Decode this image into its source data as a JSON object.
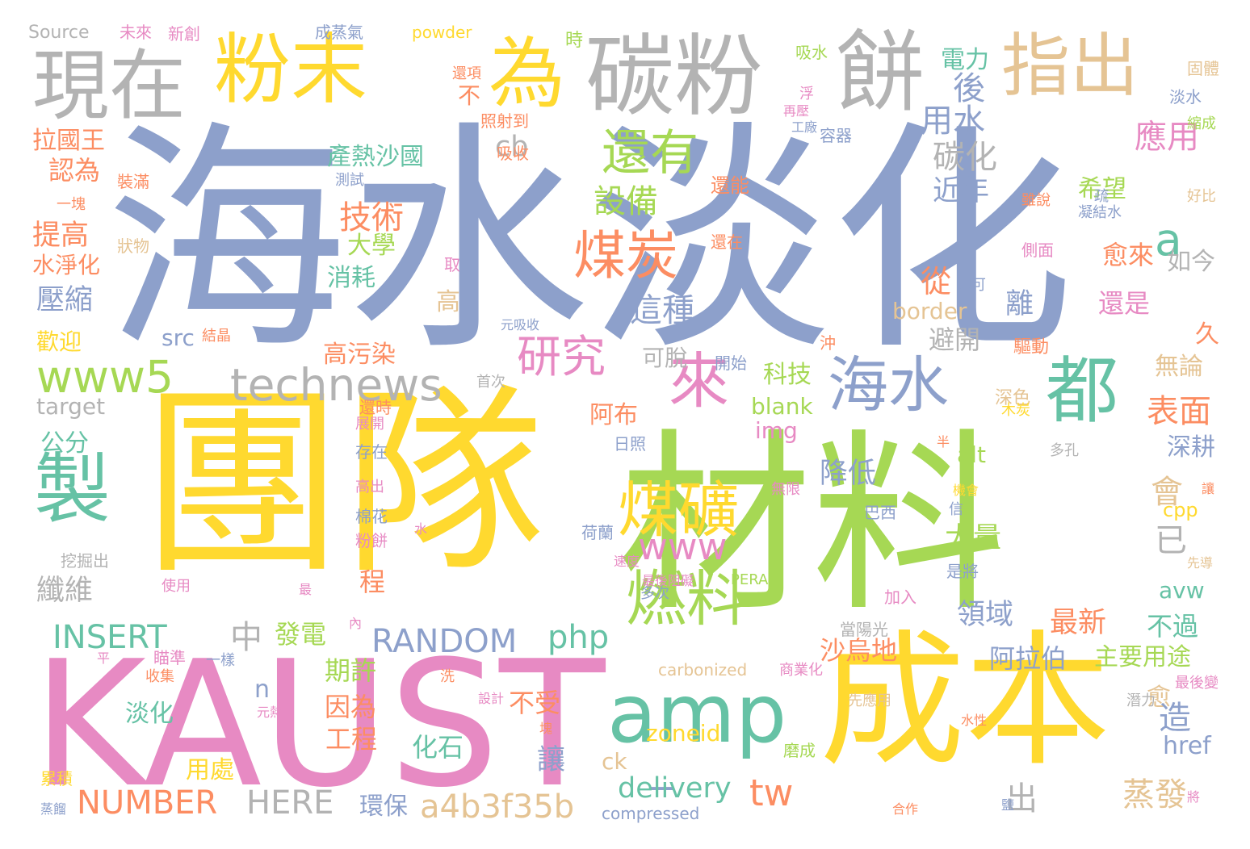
{
  "palette": {
    "periwinkle": "#8da0cb",
    "yellow": "#ffd92f",
    "green": "#a6d854",
    "pink": "#e78ac3",
    "orange": "#fc8d62",
    "teal": "#66c2a5",
    "grey": "#b3b3b3",
    "tan": "#e5c494"
  },
  "words": [
    {
      "text": "海水淡化",
      "color": "#8da0cb"
    },
    {
      "text": "團隊",
      "color": "#ffd92f"
    },
    {
      "text": "材料",
      "color": "#a6d854"
    },
    {
      "text": "KAUST",
      "color": "#e78ac3"
    },
    {
      "text": "成本",
      "color": "#ffd92f"
    },
    {
      "text": "碳粉",
      "color": "#b3b3b3"
    },
    {
      "text": "餅",
      "color": "#b3b3b3"
    },
    {
      "text": "現在",
      "color": "#b3b3b3"
    },
    {
      "text": "粉末",
      "color": "#ffd92f"
    },
    {
      "text": "為",
      "color": "#ffd92f"
    },
    {
      "text": "指出",
      "color": "#e5c494"
    },
    {
      "text": "amp",
      "color": "#66c2a5"
    },
    {
      "text": "製",
      "color": "#66c2a5"
    },
    {
      "text": "都",
      "color": "#66c2a5"
    },
    {
      "text": "海水",
      "color": "#8da0cb"
    },
    {
      "text": "來",
      "color": "#e78ac3"
    },
    {
      "text": "煤礦",
      "color": "#ffd92f"
    },
    {
      "text": "燃料",
      "color": "#a6d854"
    },
    {
      "text": "煤炭",
      "color": "#fc8d62"
    },
    {
      "text": "還有",
      "color": "#a6d854"
    },
    {
      "text": "研究",
      "color": "#e78ac3"
    },
    {
      "text": "www5",
      "color": "#a6d854"
    },
    {
      "text": "technews",
      "color": "#b3b3b3"
    },
    {
      "text": "www",
      "color": "#e78ac3"
    },
    {
      "text": "tw",
      "color": "#fc8d62"
    },
    {
      "text": "a",
      "color": "#66c2a5"
    },
    {
      "text": "_",
      "color": "#8da0cb"
    },
    {
      "text": "a4b3f35b",
      "color": "#e5c494"
    },
    {
      "text": "RANDOM",
      "color": "#8da0cb"
    },
    {
      "text": "NUMBER",
      "color": "#fc8d62"
    },
    {
      "text": "HERE",
      "color": "#b3b3b3"
    },
    {
      "text": "INSERT",
      "color": "#66c2a5"
    },
    {
      "text": "php",
      "color": "#66c2a5"
    },
    {
      "text": "delivery",
      "color": "#66c2a5"
    },
    {
      "text": "後",
      "color": "#8da0cb"
    },
    {
      "text": "用水",
      "color": "#8da0cb"
    },
    {
      "text": "碳化",
      "color": "#b3b3b3"
    },
    {
      "text": "應用",
      "color": "#e78ac3"
    },
    {
      "text": "設備",
      "color": "#a6d854"
    },
    {
      "text": "技術",
      "color": "#fc8d62"
    },
    {
      "text": "這種",
      "color": "#8da0cb"
    },
    {
      "text": "從",
      "color": "#fc8d62"
    },
    {
      "text": "近年",
      "color": "#8da0cb"
    },
    {
      "text": "希望",
      "color": "#a6d854"
    },
    {
      "text": "愈來",
      "color": "#fc8d62"
    },
    {
      "text": "如今",
      "color": "#b3b3b3"
    },
    {
      "text": "離",
      "color": "#8da0cb"
    },
    {
      "text": "還是",
      "color": "#e78ac3"
    },
    {
      "text": "避開",
      "color": "#b3b3b3"
    },
    {
      "text": "久",
      "color": "#fc8d62"
    },
    {
      "text": "表面",
      "color": "#fc8d62"
    },
    {
      "text": "無論",
      "color": "#e5c494"
    },
    {
      "text": "深耕",
      "color": "#8da0cb"
    },
    {
      "text": "會",
      "color": "#e5c494"
    },
    {
      "text": "已",
      "color": "#b3b3b3"
    },
    {
      "text": "降低",
      "color": "#8da0cb"
    },
    {
      "text": "大量",
      "color": "#a6d854"
    },
    {
      "text": "領域",
      "color": "#8da0cb"
    },
    {
      "text": "最新",
      "color": "#fc8d62"
    },
    {
      "text": "不過",
      "color": "#66c2a5"
    },
    {
      "text": "阿拉伯",
      "color": "#8da0cb"
    },
    {
      "text": "主要用途",
      "color": "#a6d854"
    },
    {
      "text": "沙烏地",
      "color": "#fc8d62"
    },
    {
      "text": "愈",
      "color": "#e5c494"
    },
    {
      "text": "造",
      "color": "#8da0cb"
    },
    {
      "text": "href",
      "color": "#8da0cb"
    },
    {
      "text": "蒸發",
      "color": "#e5c494"
    },
    {
      "text": "讓",
      "color": "#8da0cb"
    },
    {
      "text": "出",
      "color": "#b3b3b3"
    },
    {
      "text": "化石",
      "color": "#66c2a5"
    },
    {
      "text": "不受",
      "color": "#fc8d62"
    },
    {
      "text": "因為",
      "color": "#fc8d62"
    },
    {
      "text": "工程",
      "color": "#fc8d62"
    },
    {
      "text": "期許",
      "color": "#a6d854"
    },
    {
      "text": "發電",
      "color": "#a6d854"
    },
    {
      "text": "中",
      "color": "#b3b3b3"
    },
    {
      "text": "n",
      "color": "#8da0cb"
    },
    {
      "text": "淡化",
      "color": "#66c2a5"
    },
    {
      "text": "用處",
      "color": "#ffd92f"
    },
    {
      "text": "環保",
      "color": "#8da0cb"
    },
    {
      "text": "科技",
      "color": "#a6d854"
    },
    {
      "text": "阿布",
      "color": "#fc8d62"
    },
    {
      "text": "可脫",
      "color": "#b3b3b3"
    },
    {
      "text": "高污染",
      "color": "#fc8d62"
    },
    {
      "text": "消耗",
      "color": "#66c2a5"
    },
    {
      "text": "大學",
      "color": "#a6d854"
    },
    {
      "text": "高",
      "color": "#e5c494"
    },
    {
      "text": "src",
      "color": "#8da0cb"
    },
    {
      "text": "border",
      "color": "#e5c494"
    },
    {
      "text": "blank",
      "color": "#a6d854"
    },
    {
      "text": "img",
      "color": "#e78ac3"
    },
    {
      "text": "alt",
      "color": "#a6d854"
    },
    {
      "text": "zoneid",
      "color": "#ffd92f"
    },
    {
      "text": "ck",
      "color": "#e5c494"
    },
    {
      "text": "avw",
      "color": "#66c2a5"
    },
    {
      "text": "cpp",
      "color": "#ffd92f"
    },
    {
      "text": "cb",
      "color": "#b3b3b3"
    },
    {
      "text": "target",
      "color": "#b3b3b3"
    },
    {
      "text": "公分",
      "color": "#66c2a5"
    },
    {
      "text": "壓縮",
      "color": "#8da0cb"
    },
    {
      "text": "纖維",
      "color": "#b3b3b3"
    },
    {
      "text": "歡迎",
      "color": "#ffd92f"
    },
    {
      "text": "水淨化",
      "color": "#fc8d62"
    },
    {
      "text": "提高",
      "color": "#fc8d62"
    },
    {
      "text": "認為",
      "color": "#fc8d62"
    },
    {
      "text": "拉國王",
      "color": "#fc8d62"
    },
    {
      "text": "產熱沙國",
      "color": "#66c2a5"
    },
    {
      "text": "不",
      "color": "#fc8d62"
    },
    {
      "text": "電力",
      "color": "#66c2a5"
    },
    {
      "text": "程",
      "color": "#fc8d62"
    },
    {
      "text": "Source",
      "color": "#b3b3b3"
    },
    {
      "text": "未來",
      "color": "#e78ac3"
    },
    {
      "text": "新創",
      "color": "#e78ac3"
    },
    {
      "text": "成蒸氣",
      "color": "#8da0cb"
    },
    {
      "text": "powder",
      "color": "#ffd92f"
    },
    {
      "text": "時",
      "color": "#a6d854"
    },
    {
      "text": "吸水",
      "color": "#a6d854"
    },
    {
      "text": "淡水",
      "color": "#8da0cb"
    },
    {
      "text": "縮成",
      "color": "#a6d854"
    },
    {
      "text": "固體",
      "color": "#e5c494"
    },
    {
      "text": "還項",
      "color": "#fc8d62"
    },
    {
      "text": "照射到",
      "color": "#fc8d62"
    },
    {
      "text": "吸收",
      "color": "#fc8d62"
    },
    {
      "text": "容器",
      "color": "#8da0cb"
    },
    {
      "text": "還能",
      "color": "#fc8d62"
    },
    {
      "text": "裝滿",
      "color": "#fc8d62"
    },
    {
      "text": "測試",
      "color": "#8da0cb"
    },
    {
      "text": "一塊",
      "color": "#fc8d62"
    },
    {
      "text": "狀物",
      "color": "#e5c494"
    },
    {
      "text": "雖說",
      "color": "#fc8d62"
    },
    {
      "text": "疏",
      "color": "#8da0cb"
    },
    {
      "text": "凝結水",
      "color": "#8da0cb"
    },
    {
      "text": "好比",
      "color": "#e5c494"
    },
    {
      "text": "側面",
      "color": "#e78ac3"
    },
    {
      "text": "還在",
      "color": "#fc8d62"
    },
    {
      "text": "取",
      "color": "#e78ac3"
    },
    {
      "text": "即可",
      "color": "#8da0cb"
    },
    {
      "text": "驅動",
      "color": "#fc8d62"
    },
    {
      "text": "沖",
      "color": "#fc8d62"
    },
    {
      "text": "開始",
      "color": "#8da0cb"
    },
    {
      "text": "深色",
      "color": "#e5c494"
    },
    {
      "text": "木炭",
      "color": "#ffd92f"
    },
    {
      "text": "日照",
      "color": "#8da0cb"
    },
    {
      "text": "存在",
      "color": "#8da0cb"
    },
    {
      "text": "首次",
      "color": "#b3b3b3"
    },
    {
      "text": "還時",
      "color": "#fc8d62"
    },
    {
      "text": "展開",
      "color": "#e78ac3"
    },
    {
      "text": "無限",
      "color": "#e78ac3"
    },
    {
      "text": "多孔",
      "color": "#b3b3b3"
    },
    {
      "text": "高出",
      "color": "#e78ac3"
    },
    {
      "text": "棉花",
      "color": "#8da0cb"
    },
    {
      "text": "粉餅",
      "color": "#e78ac3"
    },
    {
      "text": "荷蘭",
      "color": "#8da0cb"
    },
    {
      "text": "巴西",
      "color": "#8da0cb"
    },
    {
      "text": "信",
      "color": "#8da0cb"
    },
    {
      "text": "機會",
      "color": "#ffd92f"
    },
    {
      "text": "挖掘出",
      "color": "#b3b3b3"
    },
    {
      "text": "元吸收",
      "color": "#8da0cb"
    },
    {
      "text": "結晶",
      "color": "#fc8d62"
    },
    {
      "text": "使用",
      "color": "#e78ac3"
    },
    {
      "text": "最",
      "color": "#e78ac3"
    },
    {
      "text": "多次",
      "color": "#8da0cb"
    },
    {
      "text": "最後阻礙",
      "color": "#e78ac3"
    },
    {
      "text": "PERA",
      "color": "#a6d854"
    },
    {
      "text": "是將",
      "color": "#8da0cb"
    },
    {
      "text": "加入",
      "color": "#e78ac3"
    },
    {
      "text": "當陽光",
      "color": "#b3b3b3"
    },
    {
      "text": "洗",
      "color": "#fc8d62"
    },
    {
      "text": "瞄準",
      "color": "#e78ac3"
    },
    {
      "text": "一樣",
      "color": "#8da0cb"
    },
    {
      "text": "收集",
      "color": "#fc8d62"
    },
    {
      "text": "carbonized",
      "color": "#e5c494"
    },
    {
      "text": "商業化",
      "color": "#e78ac3"
    },
    {
      "text": "設計",
      "color": "#e78ac3"
    },
    {
      "text": "先應用",
      "color": "#e5c494"
    },
    {
      "text": "潛力",
      "color": "#b3b3b3"
    },
    {
      "text": "最後變",
      "color": "#e78ac3"
    },
    {
      "text": "水性",
      "color": "#fc8d62"
    },
    {
      "text": "磨成",
      "color": "#a6d854"
    },
    {
      "text": "累積",
      "color": "#ffd92f"
    },
    {
      "text": "蒸餾",
      "color": "#8da0cb"
    },
    {
      "text": "compressed",
      "color": "#8da0cb"
    },
    {
      "text": "合作",
      "color": "#fc8d62"
    },
    {
      "text": "將",
      "color": "#e78ac3"
    },
    {
      "text": "元熱",
      "color": "#e78ac3"
    },
    {
      "text": "半",
      "color": "#fc8d62"
    },
    {
      "text": "再壓",
      "color": "#e78ac3"
    },
    {
      "text": "工廠",
      "color": "#8da0cb"
    },
    {
      "text": "浮",
      "color": "#e78ac3"
    },
    {
      "text": "鹽",
      "color": "#8da0cb"
    },
    {
      "text": "先導",
      "color": "#e5c494"
    },
    {
      "text": "速度",
      "color": "#e78ac3"
    },
    {
      "text": "內",
      "color": "#e78ac3"
    },
    {
      "text": "平",
      "color": "#e78ac3"
    },
    {
      "text": "水",
      "color": "#e78ac3"
    },
    {
      "text": "塊",
      "color": "#fc8d62"
    },
    {
      "text": "讓",
      "color": "#fc8d62"
    }
  ]
}
